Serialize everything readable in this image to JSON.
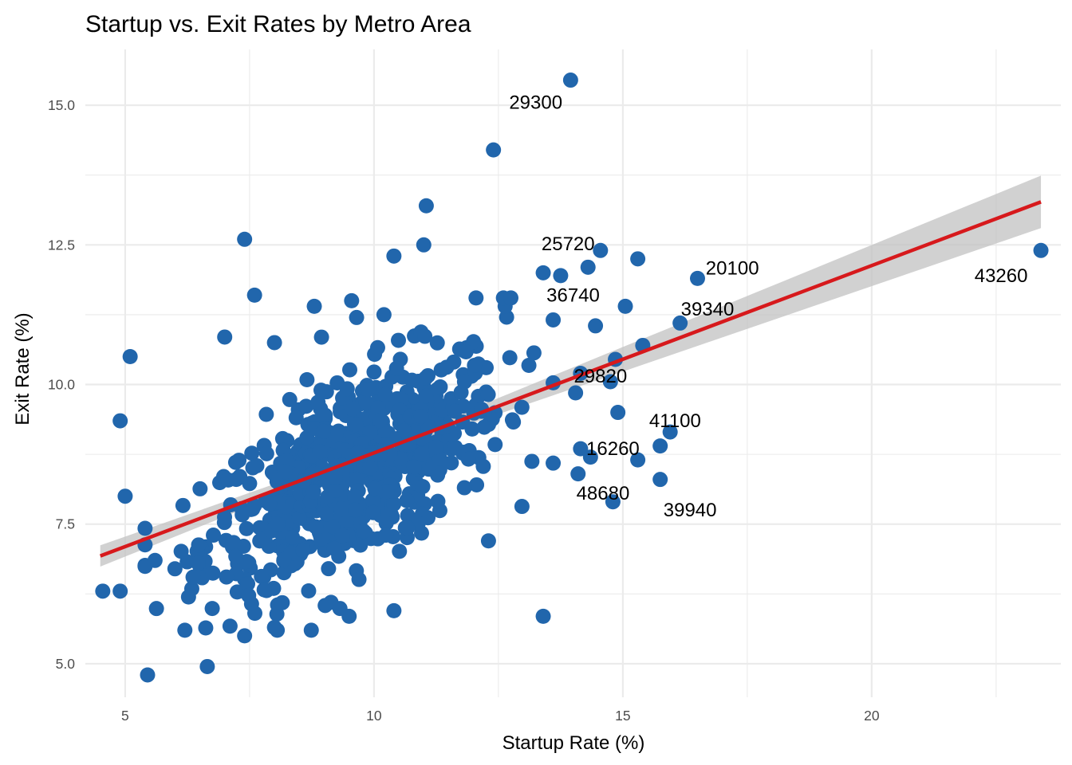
{
  "chart_data": {
    "type": "scatter",
    "title": "Startup vs. Exit Rates by Metro Area",
    "xlabel": "Startup Rate (%)",
    "ylabel": "Exit Rate (%)",
    "xlim": [
      4.2,
      23.8
    ],
    "ylim": [
      4.4,
      16.0
    ],
    "x_ticks": [
      5,
      10,
      15,
      20
    ],
    "x_tick_labels": [
      "5",
      "10",
      "15",
      "20"
    ],
    "y_ticks": [
      5.0,
      7.5,
      10.0,
      12.5,
      15.0
    ],
    "y_tick_labels": [
      "5.0",
      "7.5",
      "10.0",
      "12.5",
      "15.0"
    ],
    "grid": true,
    "legend": "none",
    "colors": {
      "points": "#2166ac",
      "fit_line": "#d7191c",
      "ci_band": "#bfbfbf",
      "grid": "#ebebeb"
    },
    "fit": {
      "method": "linear",
      "x": [
        4.5,
        23.4
      ],
      "y": [
        6.93,
        13.27
      ],
      "ci_halfwidth_at_x": [
        [
          4.5,
          0.19
        ],
        [
          10.0,
          0.07
        ],
        [
          23.4,
          0.47
        ]
      ]
    },
    "cloud": {
      "n": 700,
      "center_x": 9.6,
      "center_y": 8.45,
      "sd_x": 1.5,
      "sd_y": 1.05
    },
    "points": [
      [
        13.95,
        15.45
      ],
      [
        12.4,
        14.2
      ],
      [
        11.05,
        13.2
      ],
      [
        7.4,
        12.6
      ],
      [
        11.0,
        12.5
      ],
      [
        10.4,
        12.3
      ],
      [
        14.55,
        12.4
      ],
      [
        14.3,
        12.1
      ],
      [
        15.3,
        12.25
      ],
      [
        16.5,
        11.9
      ],
      [
        23.4,
        12.4
      ],
      [
        13.4,
        12.0
      ],
      [
        13.75,
        11.95
      ],
      [
        15.05,
        11.4
      ],
      [
        16.15,
        11.1
      ],
      [
        14.45,
        11.05
      ],
      [
        15.4,
        10.7
      ],
      [
        14.85,
        10.45
      ],
      [
        14.15,
        10.2
      ],
      [
        14.05,
        9.85
      ],
      [
        14.75,
        10.05
      ],
      [
        14.9,
        9.5
      ],
      [
        15.95,
        9.15
      ],
      [
        15.75,
        8.9
      ],
      [
        14.15,
        8.85
      ],
      [
        15.3,
        8.65
      ],
      [
        14.35,
        8.7
      ],
      [
        14.1,
        8.4
      ],
      [
        15.75,
        8.3
      ],
      [
        14.8,
        7.9
      ],
      [
        13.4,
        5.85
      ],
      [
        12.3,
        7.2
      ],
      [
        5.1,
        10.5
      ],
      [
        4.9,
        9.35
      ],
      [
        5.0,
        8.0
      ],
      [
        4.55,
        6.3
      ],
      [
        4.9,
        6.3
      ],
      [
        5.45,
        4.8
      ],
      [
        6.65,
        4.95
      ],
      [
        7.0,
        10.85
      ],
      [
        7.6,
        11.6
      ],
      [
        8.8,
        11.4
      ],
      [
        9.55,
        11.5
      ],
      [
        9.65,
        11.2
      ],
      [
        10.2,
        11.25
      ],
      [
        12.05,
        11.55
      ],
      [
        12.6,
        11.55
      ],
      [
        12.75,
        11.55
      ],
      [
        10.4,
        5.95
      ],
      [
        9.5,
        5.85
      ],
      [
        7.4,
        5.5
      ],
      [
        8.0,
        5.65
      ],
      [
        6.0,
        6.7
      ],
      [
        5.6,
        6.85
      ],
      [
        8.0,
        10.75
      ]
    ],
    "labels": [
      {
        "text": "29300",
        "x": 13.95,
        "y": 15.45,
        "dx": -0.7,
        "dy": -0.4
      },
      {
        "text": "25720",
        "x": 14.55,
        "y": 12.4,
        "dx": -0.65,
        "dy": 0.12
      },
      {
        "text": "20100",
        "x": 16.5,
        "y": 11.9,
        "dx": 0.7,
        "dy": 0.18
      },
      {
        "text": "43260",
        "x": 23.4,
        "y": 12.4,
        "dx": -0.8,
        "dy": -0.45
      },
      {
        "text": "36740",
        "x": 15.05,
        "y": 11.4,
        "dx": -1.05,
        "dy": 0.2
      },
      {
        "text": "39340",
        "x": 16.15,
        "y": 11.1,
        "dx": 0.55,
        "dy": 0.25
      },
      {
        "text": "29820",
        "x": 14.85,
        "y": 10.45,
        "dx": -0.3,
        "dy": -0.3
      },
      {
        "text": "41100",
        "x": 15.95,
        "y": 9.15,
        "dx": 0.1,
        "dy": 0.2
      },
      {
        "text": "16260",
        "x": 14.15,
        "y": 8.85,
        "dx": 0.65,
        "dy": 0.0
      },
      {
        "text": "48680",
        "x": 14.1,
        "y": 8.4,
        "dx": 0.5,
        "dy": -0.35
      },
      {
        "text": "39940",
        "x": 15.75,
        "y": 8.3,
        "dx": 0.6,
        "dy": -0.55
      }
    ]
  }
}
